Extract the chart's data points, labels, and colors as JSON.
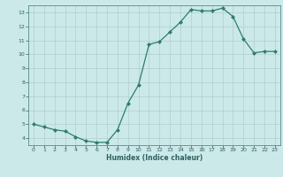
{
  "x": [
    0,
    1,
    2,
    3,
    4,
    5,
    6,
    7,
    8,
    9,
    10,
    11,
    12,
    13,
    14,
    15,
    16,
    17,
    18,
    19,
    20,
    21,
    22,
    23
  ],
  "y": [
    5.0,
    4.8,
    4.6,
    4.5,
    4.1,
    3.8,
    3.7,
    3.7,
    4.6,
    6.5,
    7.8,
    10.7,
    10.9,
    11.6,
    12.3,
    13.2,
    13.1,
    13.1,
    13.3,
    12.7,
    11.1,
    10.1,
    10.2,
    10.2
  ],
  "xlabel": "Humidex (Indice chaleur)",
  "line_color": "#2e7d6e",
  "marker_color": "#2e7d6e",
  "bg_color": "#cce9e9",
  "grid_color": "#b0cece",
  "text_color": "#2e6060",
  "spine_color": "#5a8a8a",
  "ylim": [
    3.5,
    13.5
  ],
  "xlim": [
    -0.5,
    23.5
  ],
  "yticks": [
    4,
    5,
    6,
    7,
    8,
    9,
    10,
    11,
    12,
    13
  ],
  "xticks": [
    0,
    1,
    2,
    3,
    4,
    5,
    6,
    7,
    8,
    9,
    10,
    11,
    12,
    13,
    14,
    15,
    16,
    17,
    18,
    19,
    20,
    21,
    22,
    23
  ]
}
